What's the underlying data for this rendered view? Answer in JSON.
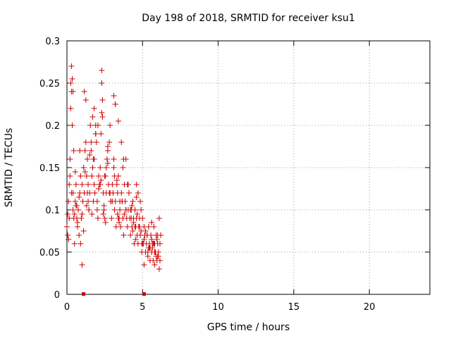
{
  "chart_data": {
    "type": "scatter",
    "title": "Day 198 of 2018, SRMTID for receiver ksu1",
    "xlabel": "GPS time / hours",
    "ylabel": "SRMTID / TECUs",
    "xlim": [
      0,
      24
    ],
    "ylim": [
      0,
      0.3
    ],
    "xticks": [
      0,
      5,
      10,
      15,
      20
    ],
    "yticks": [
      0,
      0.05,
      0.1,
      0.15,
      0.2,
      0.25,
      0.3
    ],
    "xtick_labels": [
      "0",
      "5",
      "10",
      "15",
      "20"
    ],
    "ytick_labels": [
      "0",
      "0.05",
      "0.1",
      "0.15",
      "0.2",
      "0.25",
      "0.3"
    ],
    "grid": true,
    "marker": "+",
    "series": [
      {
        "name": "SRMTID",
        "color": "#cc0000",
        "x": [
          0.0,
          0.05,
          0.1,
          0.15,
          0.2,
          0.25,
          0.3,
          0.35,
          0.4,
          0.45,
          0.5,
          0.55,
          0.6,
          0.65,
          0.7,
          0.75,
          0.8,
          0.85,
          0.9,
          0.95,
          1.0,
          1.05,
          1.1,
          1.15,
          1.2,
          1.25,
          1.3,
          1.35,
          1.4,
          1.45,
          1.5,
          1.55,
          1.6,
          1.65,
          1.7,
          1.75,
          1.8,
          1.85,
          1.9,
          1.95,
          2.0,
          2.05,
          2.1,
          2.15,
          2.2,
          2.25,
          2.3,
          2.35,
          2.4,
          2.45,
          2.5,
          2.55,
          2.6,
          2.65,
          2.7,
          2.75,
          2.8,
          2.85,
          2.9,
          2.95,
          3.0,
          3.05,
          3.1,
          3.15,
          3.2,
          3.25,
          3.3,
          3.35,
          3.4,
          3.45,
          3.5,
          3.55,
          3.6,
          3.65,
          3.7,
          3.75,
          3.8,
          3.85,
          3.9,
          3.95,
          4.0,
          4.05,
          4.1,
          4.15,
          4.2,
          4.25,
          4.3,
          4.35,
          4.4,
          4.45,
          4.5,
          4.55,
          4.6,
          4.65,
          4.7,
          4.75,
          4.8,
          4.85,
          4.9,
          4.95,
          5.0,
          5.05,
          5.1,
          5.15,
          5.2,
          5.25,
          5.3,
          5.35,
          5.4,
          5.45,
          5.5,
          5.55,
          5.6,
          5.65,
          5.7,
          5.75,
          5.8,
          5.85,
          5.9,
          5.95,
          6.0,
          6.05,
          6.1,
          6.15,
          6.2,
          0.1,
          0.3,
          0.5,
          0.7,
          0.9,
          1.1,
          1.3,
          1.5,
          1.7,
          1.9,
          2.1,
          2.3,
          2.5,
          2.7,
          2.9,
          3.1,
          3.3,
          3.5,
          3.7,
          3.9,
          4.1,
          4.3,
          4.5,
          4.7,
          4.9,
          5.1,
          5.3,
          5.5,
          5.7,
          5.9,
          6.1,
          0.2,
          0.4,
          0.6,
          0.8,
          1.0,
          1.2,
          1.4,
          1.6,
          1.8,
          2.0,
          2.2,
          2.4,
          2.6,
          2.8,
          3.0,
          3.2,
          3.4,
          3.6,
          3.8,
          4.0,
          4.2,
          4.4,
          4.6,
          4.8,
          5.0,
          5.2,
          5.4,
          5.6,
          5.8,
          6.0,
          0.3,
          0.35,
          0.4,
          2.3,
          2.35,
          1.15,
          1.25,
          3.1,
          3.2,
          0.25,
          0.45,
          1.8,
          1.9,
          2.7,
          3.4,
          3.9,
          4.6,
          5.6,
          5.8,
          6.0,
          1.0,
          5.1,
          0.15,
          0.55,
          0.85,
          1.45,
          1.75,
          2.05,
          2.45,
          2.85,
          3.15,
          3.45,
          3.75,
          4.05,
          4.35,
          4.65,
          4.95,
          5.35,
          5.65,
          5.95,
          0.05,
          0.65,
          1.35,
          1.65,
          2.25,
          2.55,
          3.05,
          3.35,
          3.65,
          4.25,
          4.55,
          4.85,
          5.45,
          5.75,
          6.05,
          6.15
        ],
        "y": [
          0.08,
          0.07,
          0.11,
          0.13,
          0.16,
          0.25,
          0.24,
          0.2,
          0.1,
          0.09,
          0.06,
          0.11,
          0.13,
          0.09,
          0.08,
          0.1,
          0.07,
          0.12,
          0.06,
          0.09,
          0.13,
          0.11,
          0.15,
          0.12,
          0.17,
          0.18,
          0.14,
          0.16,
          0.13,
          0.1,
          0.12,
          0.2,
          0.18,
          0.14,
          0.21,
          0.16,
          0.13,
          0.12,
          0.2,
          0.18,
          0.11,
          0.09,
          0.14,
          0.13,
          0.15,
          0.19,
          0.25,
          0.21,
          0.12,
          0.1,
          0.09,
          0.14,
          0.12,
          0.16,
          0.17,
          0.13,
          0.18,
          0.2,
          0.11,
          0.09,
          0.13,
          0.12,
          0.15,
          0.1,
          0.11,
          0.08,
          0.13,
          0.12,
          0.14,
          0.09,
          0.1,
          0.08,
          0.12,
          0.11,
          0.09,
          0.07,
          0.13,
          0.11,
          0.1,
          0.09,
          0.08,
          0.1,
          0.12,
          0.09,
          0.07,
          0.1,
          0.08,
          0.11,
          0.09,
          0.06,
          0.1,
          0.08,
          0.09,
          0.07,
          0.06,
          0.08,
          0.09,
          0.07,
          0.1,
          0.05,
          0.09,
          0.06,
          0.08,
          0.07,
          0.05,
          0.06,
          0.07,
          0.05,
          0.08,
          0.06,
          0.04,
          0.07,
          0.05,
          0.06,
          0.04,
          0.08,
          0.06,
          0.05,
          0.07,
          0.04,
          0.06,
          0.05,
          0.03,
          0.06,
          0.07,
          0.065,
          0.12,
          0.095,
          0.085,
          0.14,
          0.075,
          0.105,
          0.165,
          0.15,
          0.19,
          0.125,
          0.215,
          0.14,
          0.175,
          0.11,
          0.16,
          0.135,
          0.11,
          0.15,
          0.1,
          0.12,
          0.105,
          0.08,
          0.12,
          0.075,
          0.065,
          0.07,
          0.055,
          0.06,
          0.045,
          0.09,
          0.14,
          0.12,
          0.105,
          0.115,
          0.095,
          0.145,
          0.11,
          0.17,
          0.16,
          0.1,
          0.13,
          0.095,
          0.15,
          0.12,
          0.11,
          0.225,
          0.09,
          0.18,
          0.095,
          0.13,
          0.1,
          0.085,
          0.115,
          0.08,
          0.06,
          0.075,
          0.055,
          0.065,
          0.05,
          0.07,
          0.27,
          0.255,
          0.24,
          0.265,
          0.23,
          0.24,
          0.23,
          0.235,
          0.225,
          0.22,
          0.17,
          0.22,
          0.19,
          0.155,
          0.205,
          0.16,
          0.13,
          0.085,
          0.035,
          0.045,
          0.035,
          0.035,
          0.09,
          0.145,
          0.17,
          0.1,
          0.11,
          0.2,
          0.105,
          0.12,
          0.14,
          0.085,
          0.16,
          0.13,
          0.075,
          0.095,
          0.06,
          0.045,
          0.055,
          0.065,
          0.095,
          0.105,
          0.12,
          0.095,
          0.135,
          0.085,
          0.12,
          0.095,
          0.11,
          0.09,
          0.065,
          0.11,
          0.055,
          0.06,
          0.045,
          0.04
        ],
        "zero_markers_x": [
          1.1,
          5.1
        ]
      }
    ]
  }
}
